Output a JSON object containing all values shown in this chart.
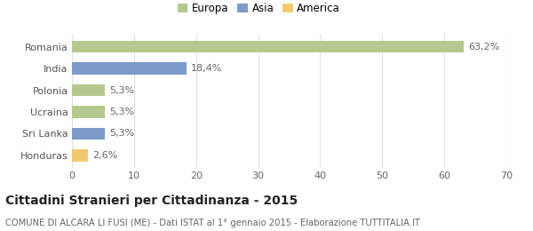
{
  "categories": [
    "Romania",
    "India",
    "Polonia",
    "Ucraina",
    "Sri Lanka",
    "Honduras"
  ],
  "values": [
    63.2,
    18.4,
    5.3,
    5.3,
    5.3,
    2.6
  ],
  "labels": [
    "63,2%",
    "18,4%",
    "5,3%",
    "5,3%",
    "5,3%",
    "2,6%"
  ],
  "colors": [
    "#b5c98e",
    "#7b9bc8",
    "#b5c98e",
    "#b5c98e",
    "#7b9bc8",
    "#f0c96e"
  ],
  "legend_items": [
    {
      "label": "Europa",
      "color": "#b5c98e"
    },
    {
      "label": "Asia",
      "color": "#7b9bc8"
    },
    {
      "label": "America",
      "color": "#f0c96e"
    }
  ],
  "xlim": [
    0,
    70
  ],
  "xticks": [
    0,
    10,
    20,
    30,
    40,
    50,
    60,
    70
  ],
  "title": "Cittadini Stranieri per Cittadinanza - 2015",
  "subtitle": "COMUNE DI ALCARA LI FUSI (ME) - Dati ISTAT al 1° gennaio 2015 - Elaborazione TUTTITALIA.IT",
  "background_color": "#ffffff",
  "grid_color": "#e0e0e0",
  "bar_height": 0.55,
  "label_fontsize": 8.0,
  "ytick_fontsize": 8.0,
  "xtick_fontsize": 8.0,
  "title_fontsize": 10.0,
  "subtitle_fontsize": 7.2,
  "legend_fontsize": 8.5
}
